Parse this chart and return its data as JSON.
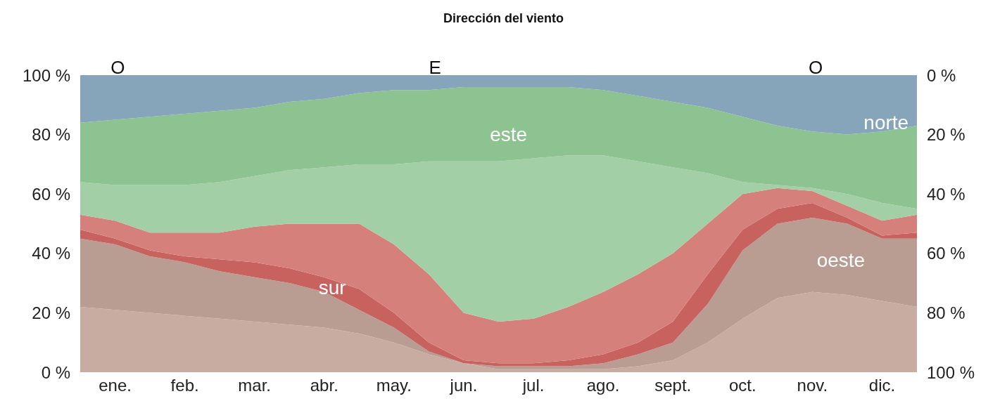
{
  "chart_data": {
    "type": "area",
    "stacked": true,
    "title": "Dirección del viento",
    "categories": [
      null,
      "ene.",
      null,
      "feb.",
      null,
      "mar.",
      null,
      "abr.",
      null,
      "may.",
      null,
      "jun.",
      null,
      "jul.",
      null,
      "ago.",
      null,
      "sept.",
      null,
      "oct.",
      null,
      "nov.",
      null,
      "dic.",
      null
    ],
    "series": [
      {
        "color": "#c8aca2",
        "values": [
          22,
          21,
          20,
          19,
          18,
          17,
          16,
          15,
          13,
          10,
          6,
          3,
          1,
          1,
          1,
          1,
          2,
          4,
          10,
          18,
          25,
          27,
          26,
          24,
          22
        ]
      },
      {
        "color": "#b99d93",
        "values": [
          23,
          22,
          19,
          18,
          16,
          15,
          14,
          12,
          8,
          5,
          1,
          0,
          1,
          1,
          1,
          2,
          4,
          6,
          13,
          23,
          25,
          25,
          24,
          21,
          23
        ]
      },
      {
        "color": "#c8625f",
        "values": [
          3,
          2,
          2,
          2,
          4,
          5,
          5,
          5,
          7,
          5,
          3,
          1,
          1,
          1,
          2,
          3,
          4,
          7,
          10,
          7,
          5,
          5,
          2,
          1,
          2
        ]
      },
      {
        "color": "#d5807b",
        "values": [
          5,
          6,
          6,
          8,
          9,
          12,
          15,
          18,
          22,
          23,
          23,
          16,
          14,
          15,
          18,
          21,
          23,
          23,
          17,
          12,
          7,
          4,
          4,
          5,
          6
        ]
      },
      {
        "color": "#a2cfa5",
        "values": [
          11,
          12,
          16,
          16,
          17,
          17,
          18,
          19,
          20,
          27,
          38,
          51,
          54,
          54,
          51,
          46,
          38,
          29,
          17,
          4,
          1,
          1,
          4,
          6,
          2
        ]
      },
      {
        "color": "#8cc391",
        "values": [
          20,
          22,
          23,
          24,
          24,
          23,
          23,
          23,
          24,
          25,
          24,
          25,
          25,
          24,
          23,
          22,
          22,
          22,
          22,
          22,
          20,
          19,
          20,
          24,
          28
        ]
      },
      {
        "color": "#86a4ba",
        "values": [
          16,
          15,
          14,
          13,
          12,
          11,
          9,
          8,
          6,
          5,
          5,
          4,
          4,
          4,
          4,
          5,
          7,
          9,
          11,
          14,
          17,
          19,
          20,
          19,
          17
        ]
      }
    ],
    "ylim": [
      0,
      100
    ],
    "yticks": [
      {
        "value": 0,
        "label": "0 %"
      },
      {
        "value": 20,
        "label": "20 %"
      },
      {
        "value": 40,
        "label": "40 %"
      },
      {
        "value": 60,
        "label": "60 %"
      },
      {
        "value": 80,
        "label": "80 %"
      },
      {
        "value": 100,
        "label": "100 %"
      }
    ],
    "y2lim": [
      100,
      0
    ],
    "y2ticks": [
      {
        "value": 0,
        "label": "0 %"
      },
      {
        "value": 20,
        "label": "20 %"
      },
      {
        "value": 40,
        "label": "40 %"
      },
      {
        "value": 60,
        "label": "60 %"
      },
      {
        "value": 80,
        "label": "80 %"
      },
      {
        "value": 100,
        "label": "100 %"
      }
    ],
    "grid": false,
    "marker": "none",
    "annotations": [
      "O",
      "E",
      "O",
      "este",
      "norte",
      "sur",
      "oeste"
    ]
  }
}
